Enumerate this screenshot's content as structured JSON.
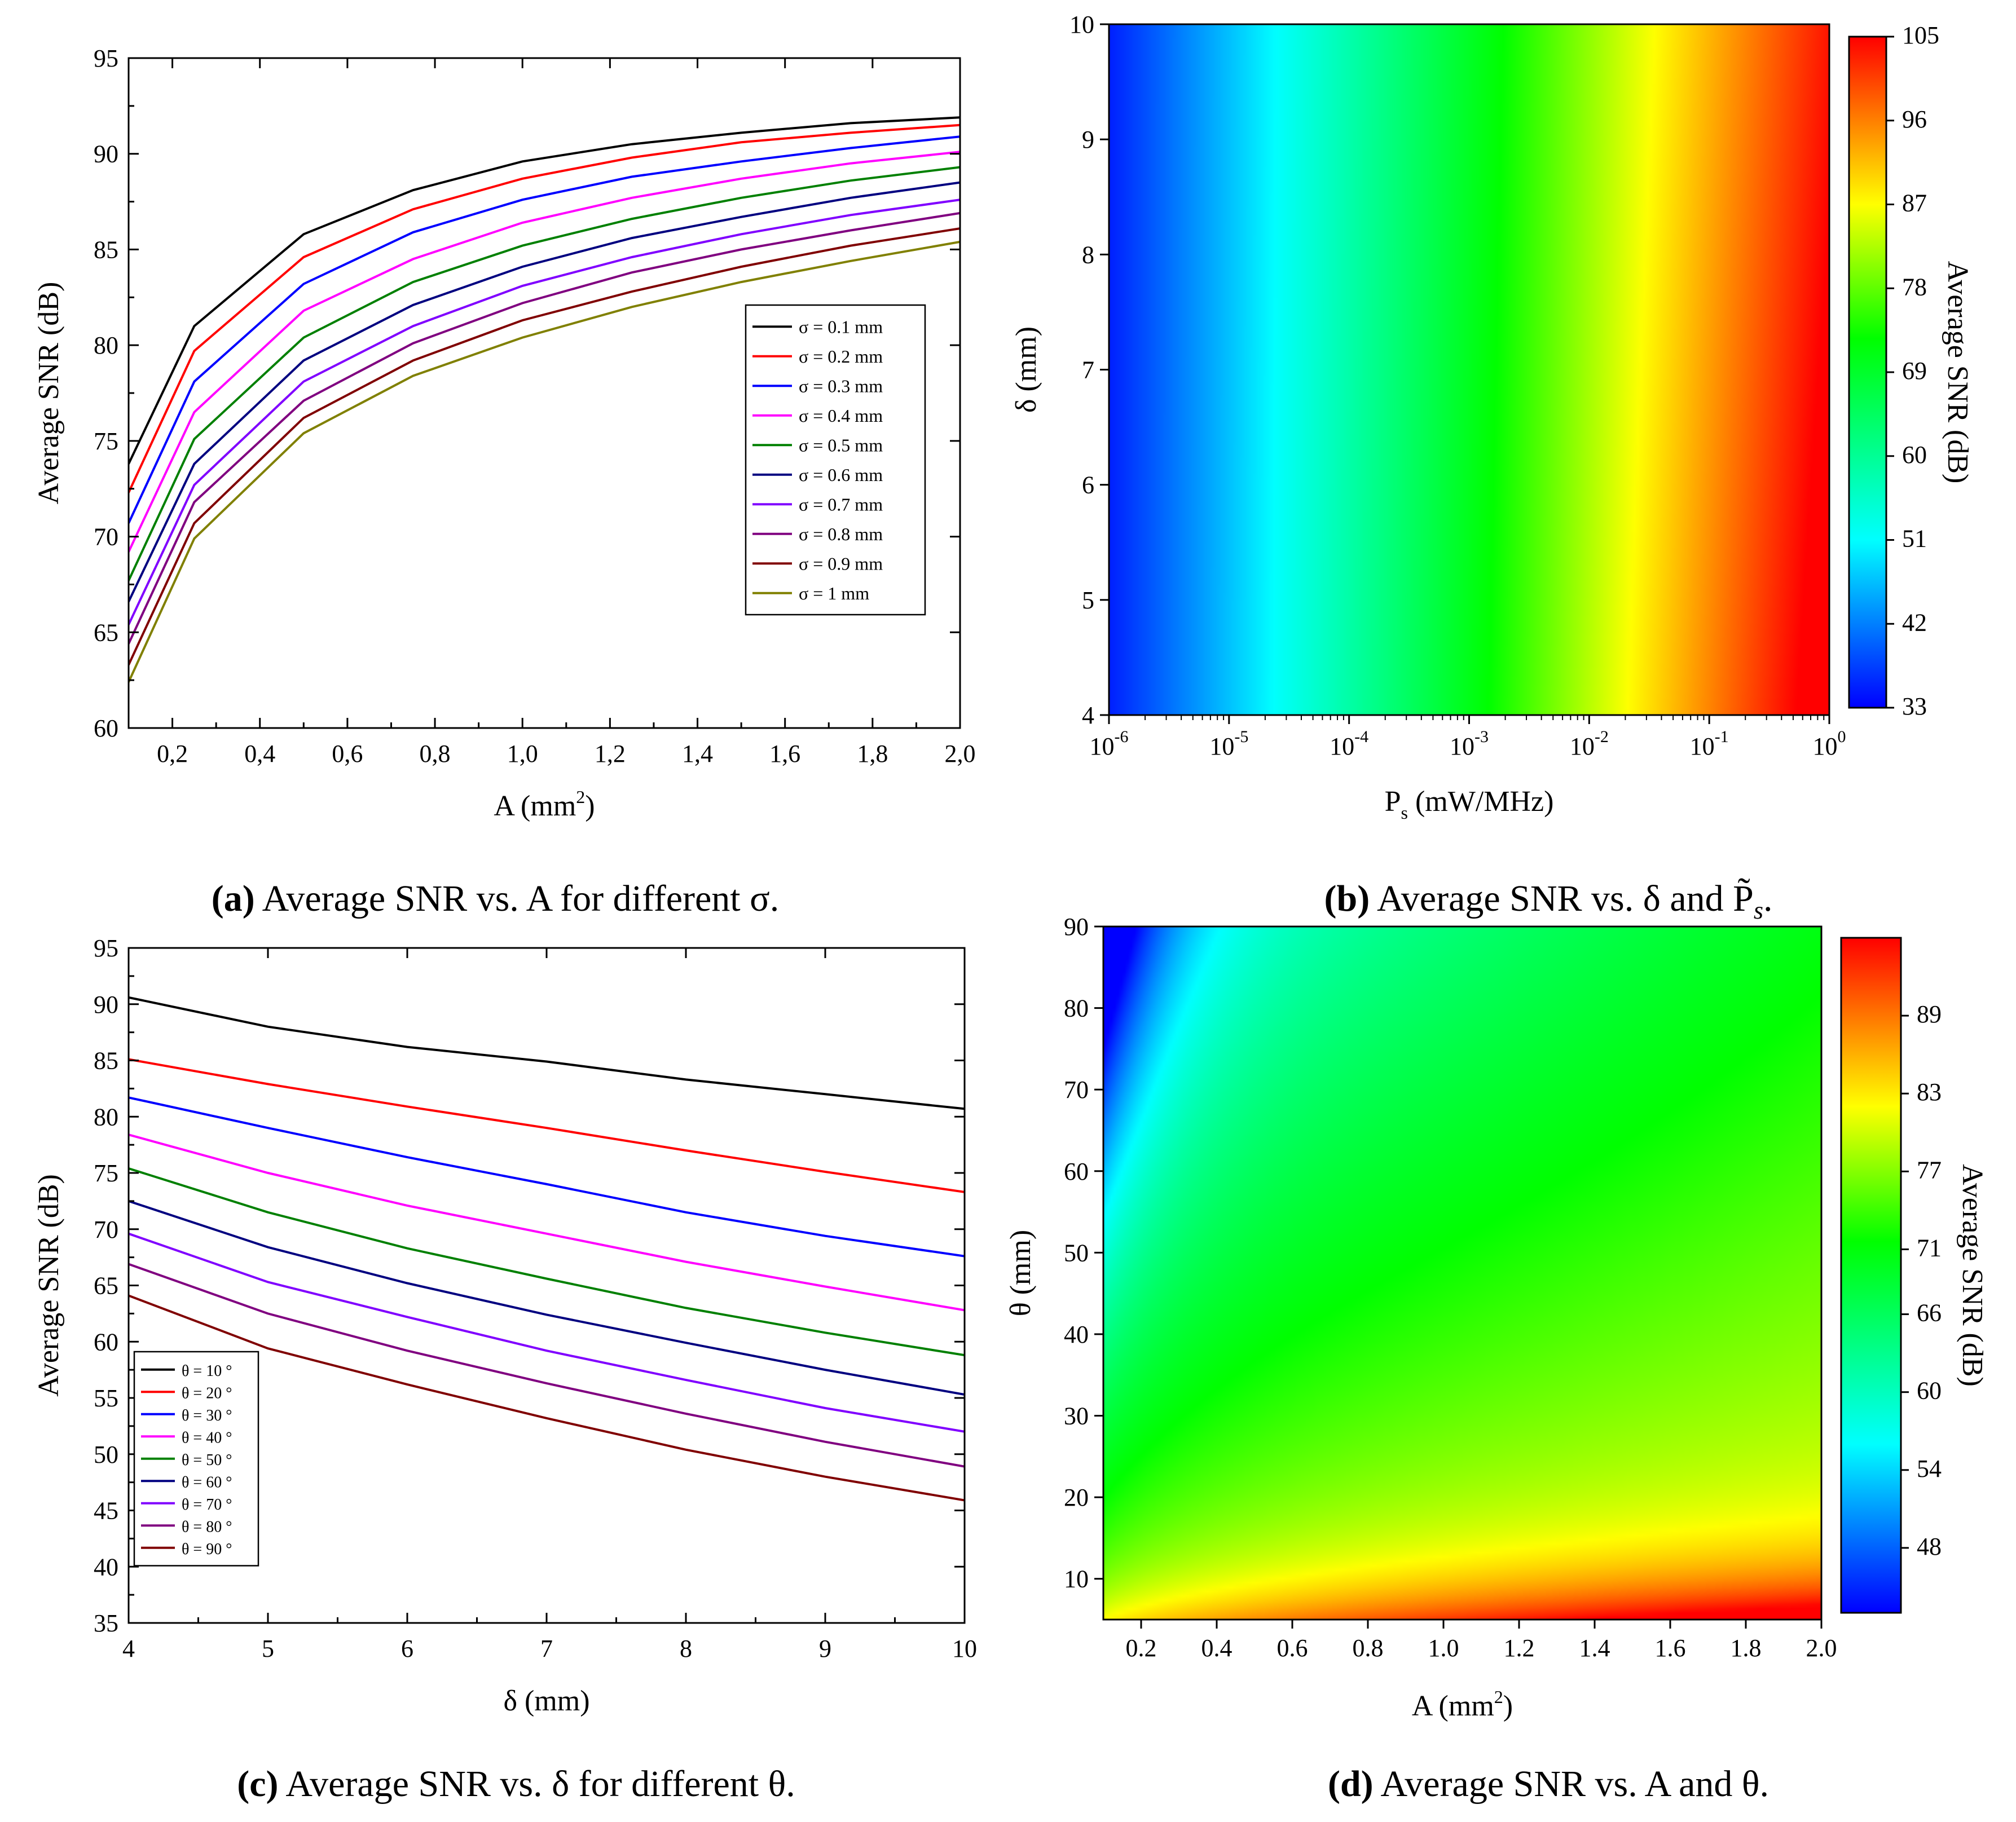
{
  "chart_data": [
    {
      "id": "a",
      "type": "line",
      "caption": {
        "label": "(a)",
        "text": "Average SNR vs. A for different σ."
      },
      "xlabel": "A (mm",
      "xlabel_sup": "2",
      "xlabel_end": ")",
      "ylabel": "Average SNR (dB)",
      "xlim": [
        0.1,
        2.0
      ],
      "ylim": [
        60,
        95
      ],
      "xticks": [
        0.2,
        0.4,
        0.6,
        0.8,
        1.0,
        1.2,
        1.4,
        1.6,
        1.8,
        2.0
      ],
      "xtick_labels": [
        "0,2",
        "0,4",
        "0,6",
        "0,8",
        "1,0",
        "1,2",
        "1,4",
        "1,6",
        "1,8",
        "2,0"
      ],
      "yticks": [
        60,
        65,
        70,
        75,
        80,
        85,
        90,
        95
      ],
      "x": [
        0.1,
        0.25,
        0.5,
        0.75,
        1.0,
        1.25,
        1.5,
        1.75,
        2.0
      ],
      "series": [
        {
          "name": "σ = 0.1 mm",
          "color": "#000000",
          "values": [
            73.8,
            81.0,
            85.8,
            88.1,
            89.6,
            90.5,
            91.1,
            91.6,
            91.9
          ]
        },
        {
          "name": "σ = 0.2 mm",
          "color": "#ff0000",
          "values": [
            72.3,
            79.7,
            84.6,
            87.1,
            88.7,
            89.8,
            90.6,
            91.1,
            91.5
          ]
        },
        {
          "name": "σ = 0.3 mm",
          "color": "#0000ff",
          "values": [
            70.7,
            78.1,
            83.2,
            85.9,
            87.6,
            88.8,
            89.6,
            90.3,
            90.9
          ]
        },
        {
          "name": "σ = 0.4 mm",
          "color": "#ff00ff",
          "values": [
            69.2,
            76.5,
            81.8,
            84.5,
            86.4,
            87.7,
            88.7,
            89.5,
            90.1
          ]
        },
        {
          "name": "σ = 0.5 mm",
          "color": "#008000",
          "values": [
            67.7,
            75.1,
            80.4,
            83.3,
            85.2,
            86.6,
            87.7,
            88.6,
            89.3
          ]
        },
        {
          "name": "σ = 0.6 mm",
          "color": "#000080",
          "values": [
            66.6,
            73.8,
            79.2,
            82.1,
            84.1,
            85.6,
            86.7,
            87.7,
            88.5
          ]
        },
        {
          "name": "σ = 0.7 mm",
          "color": "#8000ff",
          "values": [
            65.4,
            72.7,
            78.1,
            81.0,
            83.1,
            84.6,
            85.8,
            86.8,
            87.6
          ]
        },
        {
          "name": "σ = 0.8 mm",
          "color": "#800080",
          "values": [
            64.4,
            71.8,
            77.1,
            80.1,
            82.2,
            83.8,
            85.0,
            86.0,
            86.9
          ]
        },
        {
          "name": "σ = 0.9 mm",
          "color": "#800000",
          "values": [
            63.3,
            70.7,
            76.2,
            79.2,
            81.3,
            82.8,
            84.1,
            85.2,
            86.1
          ]
        },
        {
          "name": "σ = 1 mm",
          "color": "#808000",
          "values": [
            62.4,
            69.9,
            75.4,
            78.4,
            80.4,
            82.0,
            83.3,
            84.4,
            85.4
          ]
        }
      ]
    },
    {
      "id": "b",
      "type": "heatmap",
      "caption": {
        "label": "(b)",
        "text": "Average SNR vs. δ and P̃",
        "sub": "s",
        "end": "."
      },
      "xlabel": "P",
      "xlabel_sub": "s",
      "xlabel_end": " (mW/MHz)",
      "ylabel": "δ (mm)",
      "x_scale": "log",
      "xlim": [
        1e-06,
        1
      ],
      "xtick_labels": [
        {
          "base": "10",
          "exp": "-6"
        },
        {
          "base": "10",
          "exp": "-5"
        },
        {
          "base": "10",
          "exp": "-4"
        },
        {
          "base": "10",
          "exp": "-3"
        },
        {
          "base": "10",
          "exp": "-2"
        },
        {
          "base": "10",
          "exp": "-1"
        },
        {
          "base": "10",
          "exp": "0"
        }
      ],
      "ylim": [
        4,
        10
      ],
      "yticks": [
        4,
        5,
        6,
        7,
        8,
        9,
        10
      ],
      "colorbar": {
        "label": "Average SNR (dB)",
        "min": 33,
        "max": 105,
        "ticks": [
          33,
          42,
          51,
          60,
          69,
          78,
          87,
          96,
          105
        ]
      },
      "value_range": [
        33,
        105
      ]
    },
    {
      "id": "c",
      "type": "line",
      "caption": {
        "label": "(c)",
        "text": "Average SNR vs. δ for different θ."
      },
      "xlabel": "δ (mm)",
      "ylabel": "Average SNR (dB)",
      "xlim": [
        4,
        10
      ],
      "ylim": [
        35,
        95
      ],
      "xticks": [
        4,
        5,
        6,
        7,
        8,
        9,
        10
      ],
      "yticks": [
        35,
        40,
        45,
        50,
        55,
        60,
        65,
        70,
        75,
        80,
        85,
        90,
        95
      ],
      "x": [
        4,
        5,
        6,
        7,
        8,
        9,
        10
      ],
      "series": [
        {
          "name": "θ = 10 °",
          "color": "#000000",
          "values": [
            90.6,
            88.0,
            86.2,
            84.9,
            83.3,
            82.0,
            80.7
          ]
        },
        {
          "name": "θ = 20 °",
          "color": "#ff0000",
          "values": [
            85.1,
            82.9,
            80.9,
            79.0,
            77.0,
            75.1,
            73.3
          ]
        },
        {
          "name": "θ = 30 °",
          "color": "#0000ff",
          "values": [
            81.7,
            79.0,
            76.4,
            74.0,
            71.5,
            69.4,
            67.6
          ]
        },
        {
          "name": "θ = 40 °",
          "color": "#ff00ff",
          "values": [
            78.4,
            75.0,
            72.1,
            69.6,
            67.1,
            64.9,
            62.8
          ]
        },
        {
          "name": "θ = 50 °",
          "color": "#008000",
          "values": [
            75.4,
            71.5,
            68.3,
            65.6,
            63.0,
            60.8,
            58.8
          ]
        },
        {
          "name": "θ = 60 °",
          "color": "#000080",
          "values": [
            72.5,
            68.4,
            65.2,
            62.4,
            59.9,
            57.5,
            55.3
          ]
        },
        {
          "name": "θ = 70 °",
          "color": "#8000ff",
          "values": [
            69.6,
            65.3,
            62.2,
            59.2,
            56.6,
            54.1,
            52.0
          ]
        },
        {
          "name": "θ = 80 °",
          "color": "#800080",
          "values": [
            66.9,
            62.5,
            59.2,
            56.3,
            53.6,
            51.1,
            48.9
          ]
        },
        {
          "name": "θ = 90 °",
          "color": "#800000",
          "values": [
            64.1,
            59.4,
            56.2,
            53.2,
            50.4,
            48.0,
            45.9
          ]
        }
      ]
    },
    {
      "id": "d",
      "type": "heatmap",
      "caption": {
        "label": "(d)",
        "text": "Average SNR vs. A and θ."
      },
      "xlabel": "A (mm",
      "xlabel_sup": "2",
      "xlabel_end": ")",
      "ylabel": "θ (mm)",
      "xlim": [
        0.1,
        2.0
      ],
      "xticks": [
        0.2,
        0.4,
        0.6,
        0.8,
        1.0,
        1.2,
        1.4,
        1.6,
        1.8,
        2.0
      ],
      "xtick_labels": [
        "0.2",
        "0.4",
        "0.6",
        "0.8",
        "1.0",
        "1.2",
        "1.4",
        "1.6",
        "1.8",
        "2.0"
      ],
      "ylim": [
        5,
        90
      ],
      "yticks": [
        10,
        20,
        30,
        40,
        50,
        60,
        70,
        80,
        90
      ],
      "colorbar": {
        "label": "Average SNR (dB)",
        "min": 43,
        "max": 95,
        "ticks": [
          48,
          54,
          60,
          66,
          71,
          77,
          83,
          89
        ]
      },
      "value_range": [
        43,
        95
      ]
    }
  ]
}
